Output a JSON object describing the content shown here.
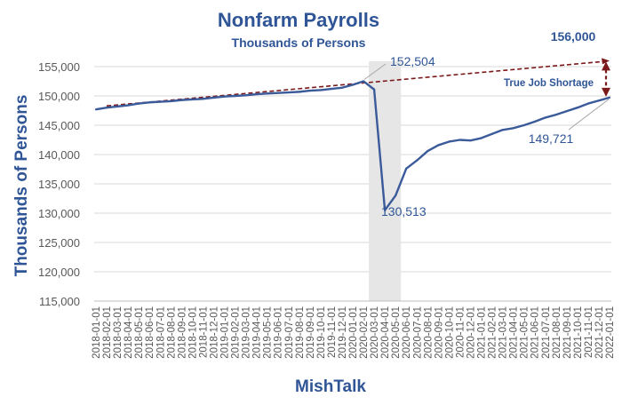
{
  "chart_data": {
    "type": "line",
    "title": "Nonfarm Payrolls",
    "subtitle": "Thousands of Persons",
    "ylabel": "Thousands of  Persons",
    "xlabel": "MishTalk",
    "ylim": [
      115000,
      155000
    ],
    "ytick_values": [
      115000,
      120000,
      125000,
      130000,
      135000,
      140000,
      145000,
      150000,
      155000
    ],
    "ytick_labels": [
      "115,000",
      "120,000",
      "125,000",
      "130,000",
      "135,000",
      "140,000",
      "145,000",
      "150,000",
      "155,000"
    ],
    "grid": true,
    "legend": "none",
    "colors": {
      "line": "#3a5a9a",
      "trend": "#7b1a1a",
      "shade": "#e6e6e6",
      "text": "#2f5597",
      "grid": "#d9d9d9"
    },
    "x": [
      "2018-01-01",
      "2018-02-01",
      "2018-03-01",
      "2018-04-01",
      "2018-05-01",
      "2018-06-01",
      "2018-07-01",
      "2018-08-01",
      "2018-09-01",
      "2018-10-01",
      "2018-11-01",
      "2018-12-01",
      "2019-01-01",
      "2019-02-01",
      "2019-03-01",
      "2019-04-01",
      "2019-05-01",
      "2019-06-01",
      "2019-07-01",
      "2019-08-01",
      "2019-09-01",
      "2019-10-01",
      "2019-11-01",
      "2019-12-01",
      "2020-01-01",
      "2020-02-01",
      "2020-03-01",
      "2020-04-01",
      "2020-05-01",
      "2020-06-01",
      "2020-07-01",
      "2020-08-01",
      "2020-09-01",
      "2020-10-01",
      "2020-11-01",
      "2020-12-01",
      "2021-01-01",
      "2021-02-01",
      "2021-03-01",
      "2021-04-01",
      "2021-05-01",
      "2021-06-01",
      "2021-07-01",
      "2021-08-01",
      "2021-09-01",
      "2021-10-01",
      "2021-11-01",
      "2021-12-01",
      "2022-01-01"
    ],
    "series": [
      {
        "values": [
          147700,
          148000,
          148200,
          148400,
          148700,
          148900,
          149000,
          149100,
          149300,
          149400,
          149500,
          149700,
          149900,
          150000,
          150100,
          150300,
          150400,
          150500,
          150600,
          150700,
          150900,
          151000,
          151200,
          151400,
          151900,
          152504,
          151100,
          130513,
          133000,
          137600,
          139000,
          140600,
          141600,
          142200,
          142500,
          142400,
          142800,
          143500,
          144200,
          144500,
          145000,
          145600,
          146300,
          146800,
          147400,
          148000,
          148700,
          149200,
          149721
        ]
      }
    ],
    "trend_line": {
      "from": {
        "x": "2018-02-01",
        "y": 148300
      },
      "to": {
        "x": "2022-01-01",
        "y": 156000
      }
    },
    "shaded_range": {
      "from": "2020-03-01",
      "to": "2020-05-01"
    },
    "annotations": {
      "peak_label": "152,504",
      "trough_label": "130,513",
      "last_label": "149,721",
      "target_label": "156,000",
      "shortage_label": "True Job Shortage"
    }
  }
}
